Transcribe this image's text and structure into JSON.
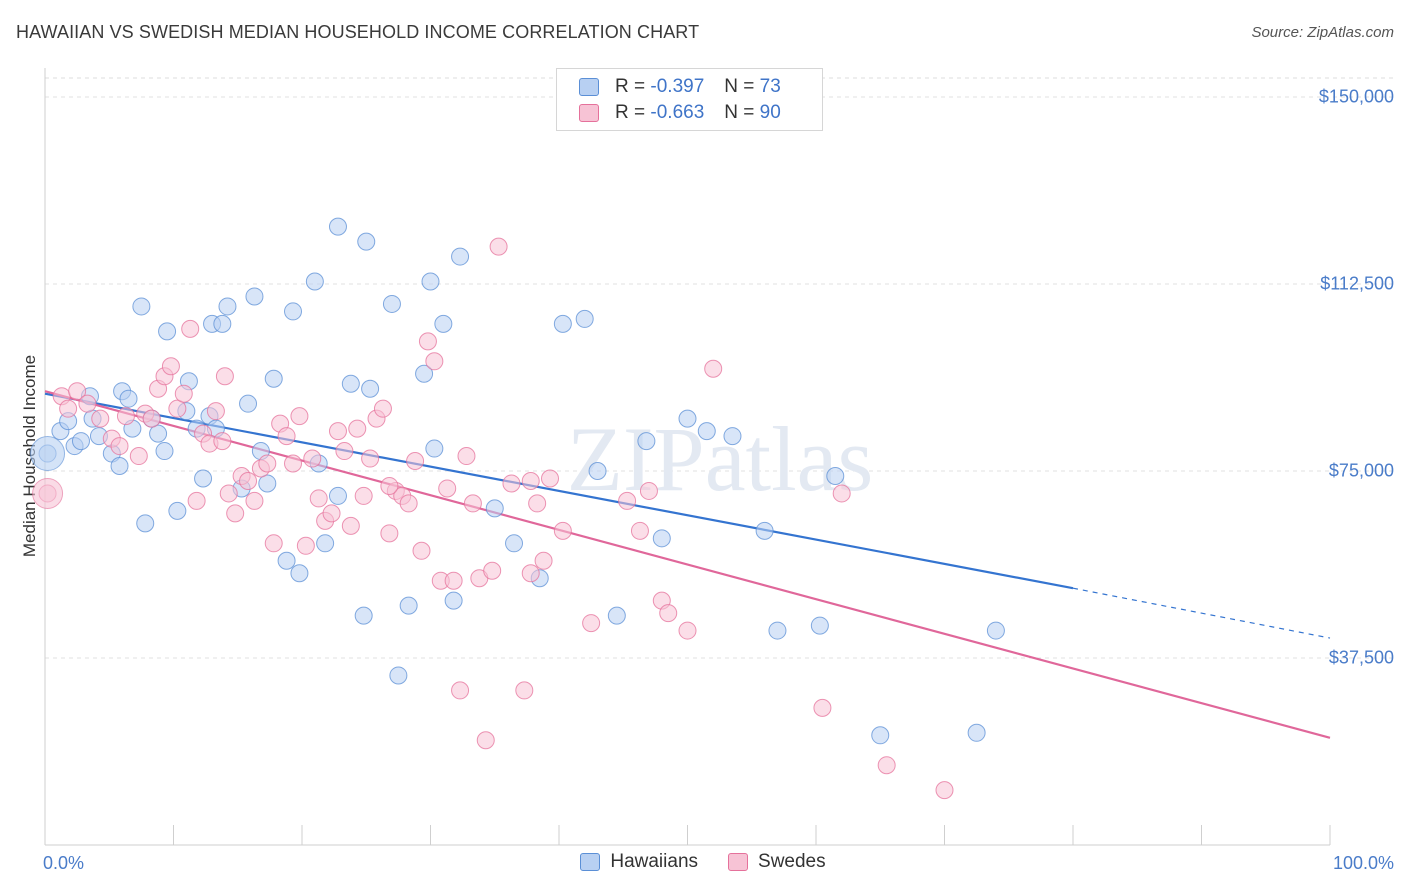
{
  "title": "HAWAIIAN VS SWEDISH MEDIAN HOUSEHOLD INCOME CORRELATION CHART",
  "source": "Source: ZipAtlas.com",
  "watermark": "ZIPatlas",
  "colors": {
    "blue": "#5b8fd6",
    "blue_fill": "#b8d0f2",
    "pink": "#e5719b",
    "pink_fill": "#f7c3d5",
    "blue_line": "#3474d0",
    "pink_line": "#e0679a",
    "tick_label": "#4a7cc9"
  },
  "legend": {
    "rows": [
      {
        "r_label": "R =",
        "r_value": "-0.397",
        "n_label": "N =",
        "n_value": "73"
      },
      {
        "r_label": "R =",
        "r_value": "-0.663",
        "n_label": "N =",
        "n_value": "90"
      }
    ]
  },
  "bottom_legend": [
    "Hawaiians",
    "Swedes"
  ],
  "chart_data": {
    "type": "scatter",
    "title": "HAWAIIAN VS SWEDISH MEDIAN HOUSEHOLD INCOME CORRELATION CHART",
    "ylabel": "Median Household Income",
    "xlabel": "",
    "xlim": [
      0,
      100
    ],
    "ylim": [
      0,
      150000
    ],
    "x_tick_labels": [
      "0.0%",
      "100.0%"
    ],
    "y_ticks": [
      37500,
      75000,
      112500,
      150000
    ],
    "y_tick_labels": [
      "$37,500",
      "$75,000",
      "$112,500",
      "$150,000"
    ],
    "grid": "horizontal dashed",
    "legend_position": "top-center",
    "series": [
      {
        "name": "Hawaiians",
        "r": -0.397,
        "n": 73,
        "trend": {
          "x0": 0,
          "y0": 90500,
          "x1": 80,
          "y1": 51500,
          "dashed_to": 100,
          "dashed_y": 41500
        },
        "points": [
          [
            0.2,
            78500
          ],
          [
            1.2,
            83000
          ],
          [
            1.8,
            85000
          ],
          [
            2.3,
            80000
          ],
          [
            2.8,
            81000
          ],
          [
            3.5,
            90000
          ],
          [
            3.7,
            85500
          ],
          [
            4.2,
            82000
          ],
          [
            5.2,
            78500
          ],
          [
            5.8,
            76000
          ],
          [
            6.0,
            91000
          ],
          [
            6.5,
            89500
          ],
          [
            6.8,
            83500
          ],
          [
            7.5,
            108000
          ],
          [
            7.8,
            64500
          ],
          [
            8.3,
            85500
          ],
          [
            8.8,
            82500
          ],
          [
            9.3,
            79000
          ],
          [
            9.5,
            103000
          ],
          [
            10.3,
            67000
          ],
          [
            11.0,
            87000
          ],
          [
            11.2,
            93000
          ],
          [
            11.8,
            83500
          ],
          [
            12.3,
            73500
          ],
          [
            12.8,
            86000
          ],
          [
            13.3,
            83500
          ],
          [
            13.0,
            104500
          ],
          [
            13.8,
            104500
          ],
          [
            14.2,
            108000
          ],
          [
            15.3,
            71500
          ],
          [
            15.8,
            88500
          ],
          [
            16.3,
            110000
          ],
          [
            16.8,
            79000
          ],
          [
            17.3,
            72500
          ],
          [
            17.8,
            93500
          ],
          [
            18.8,
            57000
          ],
          [
            19.3,
            107000
          ],
          [
            19.8,
            54500
          ],
          [
            21.3,
            76500
          ],
          [
            21.8,
            60500
          ],
          [
            21.0,
            113000
          ],
          [
            22.8,
            124000
          ],
          [
            22.8,
            70000
          ],
          [
            23.8,
            92500
          ],
          [
            25.0,
            121000
          ],
          [
            25.3,
            91500
          ],
          [
            24.8,
            46000
          ],
          [
            27.0,
            108500
          ],
          [
            27.5,
            34000
          ],
          [
            28.3,
            48000
          ],
          [
            29.5,
            94500
          ],
          [
            30.0,
            113000
          ],
          [
            30.3,
            79500
          ],
          [
            31.0,
            104500
          ],
          [
            31.8,
            49000
          ],
          [
            32.3,
            118000
          ],
          [
            35.0,
            67500
          ],
          [
            36.5,
            60500
          ],
          [
            38.5,
            53500
          ],
          [
            40.3,
            104500
          ],
          [
            42.0,
            105500
          ],
          [
            43.0,
            75000
          ],
          [
            44.5,
            46000
          ],
          [
            46.8,
            81000
          ],
          [
            48.0,
            61500
          ],
          [
            50.0,
            85500
          ],
          [
            51.5,
            83000
          ],
          [
            53.5,
            82000
          ],
          [
            57.0,
            43000
          ],
          [
            60.3,
            44000
          ],
          [
            61.5,
            74000
          ],
          [
            65.0,
            22000
          ],
          [
            72.5,
            22500
          ],
          [
            74.0,
            43000
          ],
          [
            56.0,
            63000
          ]
        ]
      },
      {
        "name": "Swedes",
        "r": -0.663,
        "n": 90,
        "trend": {
          "x0": 0,
          "y0": 91000,
          "x1": 100,
          "y1": 21500
        },
        "points": [
          [
            0.2,
            70500
          ],
          [
            1.3,
            90000
          ],
          [
            1.8,
            87500
          ],
          [
            2.5,
            91000
          ],
          [
            3.3,
            88500
          ],
          [
            4.3,
            85500
          ],
          [
            5.2,
            81500
          ],
          [
            5.8,
            80000
          ],
          [
            6.3,
            86000
          ],
          [
            7.3,
            78000
          ],
          [
            7.8,
            86500
          ],
          [
            8.3,
            85500
          ],
          [
            8.8,
            91500
          ],
          [
            9.3,
            94000
          ],
          [
            9.8,
            96000
          ],
          [
            10.3,
            87500
          ],
          [
            10.8,
            90500
          ],
          [
            11.3,
            103500
          ],
          [
            11.8,
            69000
          ],
          [
            12.3,
            82500
          ],
          [
            12.8,
            80500
          ],
          [
            13.3,
            87000
          ],
          [
            13.8,
            81000
          ],
          [
            14.3,
            70500
          ],
          [
            14.8,
            66500
          ],
          [
            15.3,
            74000
          ],
          [
            15.8,
            73000
          ],
          [
            16.3,
            69000
          ],
          [
            16.8,
            75500
          ],
          [
            17.3,
            76500
          ],
          [
            17.8,
            60500
          ],
          [
            18.3,
            84500
          ],
          [
            18.8,
            82000
          ],
          [
            19.3,
            76500
          ],
          [
            19.8,
            86000
          ],
          [
            20.3,
            60000
          ],
          [
            21.3,
            69500
          ],
          [
            21.8,
            65000
          ],
          [
            22.3,
            66500
          ],
          [
            22.8,
            83000
          ],
          [
            23.3,
            79000
          ],
          [
            23.8,
            64000
          ],
          [
            24.3,
            83500
          ],
          [
            24.8,
            70000
          ],
          [
            25.3,
            77500
          ],
          [
            25.8,
            85500
          ],
          [
            26.3,
            87500
          ],
          [
            26.8,
            62500
          ],
          [
            27.3,
            71000
          ],
          [
            27.8,
            70000
          ],
          [
            28.3,
            68500
          ],
          [
            28.8,
            77000
          ],
          [
            29.3,
            59000
          ],
          [
            29.8,
            101000
          ],
          [
            30.3,
            97000
          ],
          [
            30.8,
            53000
          ],
          [
            31.3,
            71500
          ],
          [
            31.8,
            53000
          ],
          [
            32.3,
            31000
          ],
          [
            32.8,
            78000
          ],
          [
            33.3,
            68500
          ],
          [
            33.8,
            53500
          ],
          [
            34.3,
            21000
          ],
          [
            34.8,
            55000
          ],
          [
            35.3,
            120000
          ],
          [
            36.3,
            72500
          ],
          [
            37.3,
            31000
          ],
          [
            37.8,
            73000
          ],
          [
            38.3,
            68500
          ],
          [
            38.8,
            57000
          ],
          [
            39.3,
            73500
          ],
          [
            40.3,
            63000
          ],
          [
            42.5,
            44500
          ],
          [
            45.3,
            69000
          ],
          [
            46.3,
            63000
          ],
          [
            47.0,
            71000
          ],
          [
            48.0,
            49000
          ],
          [
            48.5,
            46500
          ],
          [
            50.0,
            43000
          ],
          [
            52.0,
            95500
          ],
          [
            60.5,
            27500
          ],
          [
            62.0,
            70500
          ],
          [
            65.5,
            16000
          ],
          [
            70.0,
            11000
          ],
          [
            14.0,
            94000
          ],
          [
            20.8,
            77500
          ],
          [
            26.8,
            72000
          ],
          [
            37.8,
            54500
          ]
        ]
      }
    ]
  }
}
